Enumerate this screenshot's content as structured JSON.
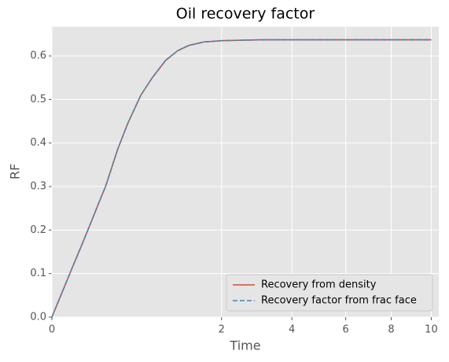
{
  "chart_data": {
    "type": "line",
    "title": "Oil recovery factor",
    "x_label": "Time",
    "y_label": "RF",
    "x": [
      0,
      0.01,
      0.03,
      0.06,
      0.099,
      0.15,
      0.2,
      0.3,
      0.4,
      0.55,
      0.7,
      0.9,
      1.1,
      1.3,
      1.6,
      2,
      3,
      5,
      7,
      10
    ],
    "series": [
      {
        "name": "Recovery from density",
        "color": "#e24a33",
        "dash": false,
        "values": [
          0,
          0.067,
          0.116,
          0.163,
          0.21,
          0.26,
          0.3,
          0.385,
          0.445,
          0.51,
          0.55,
          0.59,
          0.612,
          0.624,
          0.632,
          0.635,
          0.637,
          0.637,
          0.637,
          0.637
        ]
      },
      {
        "name": "Recovery factor from frac face",
        "color": "#348abd",
        "dash": true,
        "values": [
          0,
          0.067,
          0.116,
          0.163,
          0.21,
          0.26,
          0.3,
          0.385,
          0.445,
          0.51,
          0.55,
          0.59,
          0.612,
          0.624,
          0.632,
          0.635,
          0.637,
          0.637,
          0.637,
          0.637
        ]
      }
    ],
    "xscale": "sqrt",
    "xlim": [
      0,
      10.4
    ],
    "xticks": [
      0,
      2,
      4,
      6,
      8,
      10
    ],
    "ylim": [
      0,
      0.667
    ],
    "yticks": [
      {
        "value": 0,
        "label": "0.0"
      },
      0.1,
      0.2,
      0.3,
      0.4,
      0.5,
      0.6
    ],
    "grid": true,
    "legend": "lower right"
  }
}
